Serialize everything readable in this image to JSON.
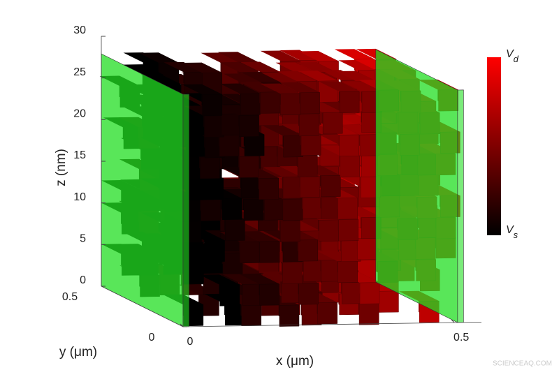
{
  "chart_data": {
    "type": "voxel3d",
    "xlabel": "x (μm)",
    "ylabel": "y (μm)",
    "zlabel": "z (nm)",
    "xlim": [
      0,
      0.55
    ],
    "xticks": [
      0,
      0.5
    ],
    "ylim": [
      0,
      0.5
    ],
    "yticks": [
      0,
      0.5
    ],
    "zlim": [
      0,
      30
    ],
    "zticks": [
      0,
      5,
      10,
      15,
      20,
      25,
      30
    ],
    "contact_color": "#22dd22",
    "colorbar": {
      "colors": [
        "#000000",
        "#ff0000"
      ],
      "top": {
        "symbol": "V",
        "subscript": "d"
      },
      "bottom": {
        "symbol": "V",
        "subscript": "s"
      }
    },
    "watermark": "SCIENCEAQ.COM"
  }
}
